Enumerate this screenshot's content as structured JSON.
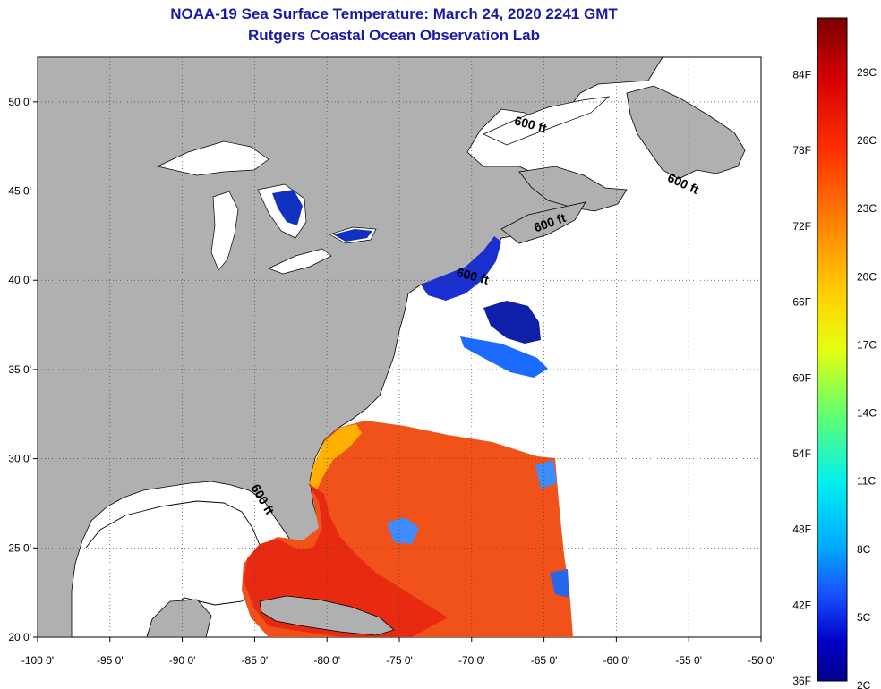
{
  "title": {
    "line1": "NOAA-19 Sea Surface Temperature:  March 24, 2020 2241 GMT",
    "line2": "Rutgers Coastal Ocean Observation Lab"
  },
  "map": {
    "lon_range": [
      -100,
      -50
    ],
    "lat_range": [
      20,
      52.5
    ],
    "x_ticks": [
      {
        "value": -100,
        "label": "-100 0'"
      },
      {
        "value": -95,
        "label": "-95 0'"
      },
      {
        "value": -90,
        "label": "-90 0'"
      },
      {
        "value": -85,
        "label": "-85 0'"
      },
      {
        "value": -80,
        "label": "-80 0'"
      },
      {
        "value": -75,
        "label": "-75 0'"
      },
      {
        "value": -70,
        "label": "-70 0'"
      },
      {
        "value": -65,
        "label": "-65 0'"
      },
      {
        "value": -60,
        "label": "-60 0'"
      },
      {
        "value": -55,
        "label": "-55 0'"
      },
      {
        "value": -50,
        "label": "-50 0'"
      }
    ],
    "y_ticks": [
      {
        "value": 20,
        "label": "20 0'"
      },
      {
        "value": 25,
        "label": "25 0'"
      },
      {
        "value": 30,
        "label": "30 0'"
      },
      {
        "value": 35,
        "label": "35 0'"
      },
      {
        "value": 40,
        "label": "40 0'"
      },
      {
        "value": 45,
        "label": "45 0'"
      },
      {
        "value": 50,
        "label": "50 0'"
      }
    ],
    "contour_labels": [
      {
        "text": "600 ft",
        "lon": -66,
        "lat": 48.5
      },
      {
        "text": "600 ft",
        "lon": -55.5,
        "lat": 45.2
      },
      {
        "text": "600 ft",
        "lon": -64.5,
        "lat": 43.0
      },
      {
        "text": "600 ft",
        "lon": -70,
        "lat": 40.0
      },
      {
        "text": "600 ft",
        "lon": -84.7,
        "lat": 27.6
      }
    ],
    "colors": {
      "land": "#b0b0b0",
      "ocean": "#ffffff",
      "grid": "#444444"
    }
  },
  "colorbar": {
    "f_labels": [
      "84F",
      "78F",
      "72F",
      "66F",
      "60F",
      "54F",
      "48F",
      "42F",
      "36F"
    ],
    "c_labels": [
      "29C",
      "26C",
      "23C",
      "20C",
      "17C",
      "14C",
      "11C",
      "8C",
      "5C",
      "2C"
    ],
    "gradient_stops": [
      "#7a0000",
      "#d40000",
      "#ff3000",
      "#ff8a00",
      "#ffd200",
      "#e4ff10",
      "#60ff70",
      "#00f0f0",
      "#00a8ff",
      "#1a50ff",
      "#0000c8",
      "#00008a"
    ]
  }
}
